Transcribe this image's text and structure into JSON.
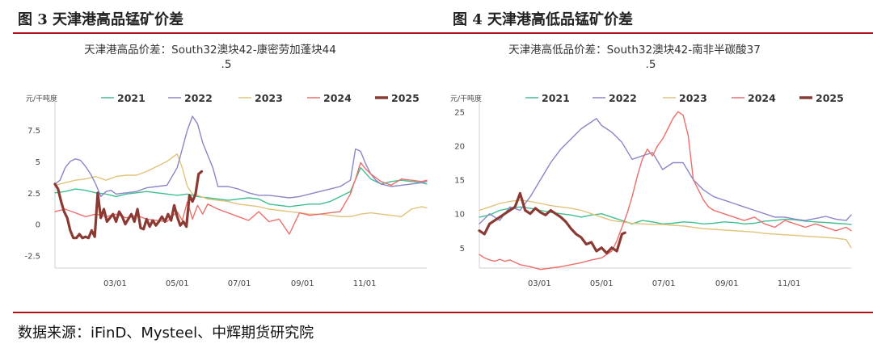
{
  "figure_titles": {
    "left": "图 3 天津港高品锰矿价差",
    "right": "图 4 天津港高低品锰矿价差"
  },
  "footer": "数据来源：iFinD、Mysteel、中辉期货研究院",
  "colors": {
    "rule": "#b0121b",
    "2021": "#3fbf8f",
    "2022": "#8a86c8",
    "2023": "#e2c27a",
    "2024": "#ec6e6a",
    "2025": "#8b3a33"
  },
  "chart_data": [
    {
      "type": "line",
      "title_line1": "天津港高品价差：South32澳块42-康密劳加蓬块44",
      "title_line2": ".5",
      "unit": "元/干吨度",
      "ylim": [
        -3.5,
        9.5
      ],
      "yticks": [
        "7.5",
        "5",
        "2.5",
        "0",
        "-2.5"
      ],
      "ytick_values": [
        7.5,
        5,
        2.5,
        0,
        -2.5
      ],
      "xlim": [
        0,
        365
      ],
      "xticks": [
        "03/01",
        "05/01",
        "07/01",
        "09/01",
        "11/01"
      ],
      "xtick_days": [
        59,
        120,
        181,
        243,
        304
      ],
      "legend": [
        "2021",
        "2022",
        "2023",
        "2024",
        "2025"
      ],
      "series": [
        {
          "name": "2021",
          "x": [
            0,
            10,
            20,
            30,
            40,
            50,
            60,
            70,
            80,
            90,
            100,
            110,
            120,
            130,
            140,
            150,
            160,
            170,
            180,
            190,
            200,
            210,
            220,
            230,
            240,
            250,
            260,
            270,
            280,
            290,
            300,
            310,
            320,
            330,
            340,
            350,
            360,
            365
          ],
          "y": [
            2.5,
            2.6,
            2.8,
            2.7,
            2.5,
            2.4,
            2.2,
            2.4,
            2.5,
            2.6,
            2.5,
            2.4,
            2.3,
            2.4,
            2.2,
            2.1,
            2.0,
            1.9,
            2.0,
            2.1,
            2.0,
            1.6,
            1.5,
            1.4,
            1.5,
            1.6,
            1.6,
            1.8,
            2.2,
            2.6,
            4.5,
            3.6,
            3.2,
            3.4,
            3.5,
            3.4,
            3.3,
            3.2
          ]
        },
        {
          "name": "2022",
          "x": [
            0,
            5,
            10,
            15,
            20,
            25,
            30,
            35,
            40,
            45,
            50,
            55,
            60,
            70,
            80,
            90,
            100,
            110,
            120,
            125,
            130,
            135,
            140,
            145,
            150,
            155,
            160,
            170,
            180,
            190,
            200,
            210,
            220,
            230,
            240,
            250,
            260,
            270,
            280,
            290,
            295,
            300,
            305,
            310,
            315,
            320,
            330,
            340,
            350,
            360,
            365
          ],
          "y": [
            3.2,
            3.5,
            4.5,
            5.0,
            5.2,
            5.1,
            4.6,
            4.0,
            3.2,
            2.2,
            2.6,
            2.7,
            2.4,
            2.5,
            2.6,
            2.9,
            3.0,
            3.1,
            4.5,
            6.0,
            7.5,
            8.6,
            8.0,
            6.5,
            5.5,
            4.5,
            3.0,
            3.0,
            2.8,
            2.5,
            2.3,
            2.3,
            2.2,
            2.1,
            2.2,
            2.4,
            2.6,
            2.8,
            3.0,
            3.5,
            6.0,
            5.8,
            4.8,
            4.0,
            3.5,
            3.2,
            3.0,
            3.1,
            3.2,
            3.3,
            3.4
          ]
        },
        {
          "name": "2023",
          "x": [
            0,
            10,
            20,
            30,
            40,
            50,
            60,
            70,
            80,
            90,
            100,
            110,
            120,
            125,
            130,
            135,
            140,
            150,
            160,
            170,
            180,
            190,
            200,
            210,
            220,
            230,
            240,
            250,
            260,
            270,
            280,
            290,
            300,
            310,
            320,
            330,
            340,
            350,
            360,
            365
          ],
          "y": [
            3.1,
            3.3,
            3.5,
            3.6,
            3.8,
            3.5,
            3.8,
            3.9,
            3.9,
            4.2,
            4.6,
            5.0,
            5.6,
            4.5,
            3.0,
            2.4,
            2.3,
            2.0,
            1.9,
            1.8,
            1.6,
            1.5,
            1.4,
            1.2,
            1.1,
            1.0,
            0.9,
            0.8,
            0.8,
            0.7,
            0.6,
            0.6,
            0.8,
            0.9,
            0.8,
            0.7,
            0.6,
            1.2,
            1.4,
            1.3
          ]
        },
        {
          "name": "2024",
          "x": [
            0,
            10,
            20,
            30,
            40,
            50,
            60,
            70,
            80,
            90,
            100,
            110,
            120,
            125,
            130,
            135,
            140,
            145,
            150,
            160,
            170,
            180,
            190,
            200,
            210,
            220,
            230,
            240,
            250,
            260,
            270,
            280,
            290,
            295,
            300,
            305,
            310,
            320,
            330,
            340,
            350,
            360,
            365
          ],
          "y": [
            1.0,
            1.2,
            0.9,
            0.6,
            0.8,
            0.6,
            0.8,
            0.5,
            0.7,
            0.4,
            0.3,
            0.2,
            1.0,
            0.3,
            1.8,
            0.4,
            1.5,
            0.8,
            1.6,
            1.2,
            0.9,
            0.6,
            0.3,
            1.0,
            0.2,
            0.4,
            -0.8,
            0.9,
            0.7,
            0.8,
            0.9,
            1.0,
            2.4,
            3.6,
            4.9,
            4.4,
            4.0,
            3.4,
            3.1,
            3.6,
            3.5,
            3.4,
            3.5
          ]
        },
        {
          "name": "2025",
          "x": [
            0,
            3,
            6,
            9,
            12,
            15,
            18,
            21,
            24,
            27,
            30,
            33,
            36,
            39,
            42,
            45,
            48,
            51,
            54,
            57,
            60,
            63,
            66,
            69,
            72,
            75,
            78,
            81,
            84,
            87,
            90,
            93,
            96,
            99,
            102,
            105,
            108,
            111,
            114,
            117,
            120,
            123,
            126,
            129,
            132,
            135,
            138,
            141,
            144
          ],
          "y": [
            3.2,
            2.8,
            1.8,
            1.0,
            0.5,
            -0.5,
            -1.1,
            -1.1,
            -0.8,
            -1.1,
            -1.0,
            -1.1,
            -0.5,
            -1.0,
            2.5,
            0.5,
            1.2,
            0.2,
            0.5,
            0.8,
            0.2,
            1.0,
            0.6,
            0.0,
            0.4,
            0.8,
            0.2,
            1.2,
            -0.3,
            -0.4,
            0.4,
            -0.2,
            0.3,
            -0.1,
            0.2,
            0.6,
            0.2,
            0.8,
            0.3,
            1.5,
            0.6,
            -0.1,
            0.2,
            -0.2,
            2.3,
            1.8,
            2.4,
            4.0,
            4.2
          ]
        }
      ]
    },
    {
      "type": "line",
      "title_line1": "天津港高低品价差：South32澳块42-南非半碳酸37",
      "title_line2": ".5",
      "unit": "元/干吨度",
      "ylim": [
        2,
        26
      ],
      "yticks": [
        "25",
        "20",
        "15",
        "10",
        "5"
      ],
      "ytick_values": [
        25,
        20,
        15,
        10,
        5
      ],
      "xlim": [
        0,
        365
      ],
      "xticks": [
        "03/01",
        "05/01",
        "07/01",
        "09/01",
        "11/01"
      ],
      "xtick_days": [
        59,
        120,
        181,
        243,
        304
      ],
      "legend": [
        "2021",
        "2022",
        "2023",
        "2024",
        "2025"
      ],
      "series": [
        {
          "name": "2021",
          "x": [
            0,
            10,
            20,
            30,
            40,
            50,
            60,
            70,
            80,
            90,
            100,
            110,
            120,
            130,
            140,
            150,
            160,
            170,
            180,
            190,
            200,
            210,
            220,
            230,
            240,
            250,
            260,
            270,
            280,
            290,
            300,
            310,
            320,
            330,
            340,
            350,
            360,
            365
          ],
          "y": [
            9.5,
            9.8,
            10.5,
            10.8,
            11.0,
            10.8,
            10.5,
            10.2,
            10.0,
            9.8,
            9.5,
            9.8,
            10.0,
            9.5,
            9.0,
            8.5,
            9.0,
            8.8,
            8.5,
            8.6,
            8.8,
            8.7,
            8.5,
            8.6,
            8.8,
            8.7,
            8.5,
            8.6,
            8.9,
            9.0,
            9.2,
            9.1,
            8.9,
            8.8,
            8.7,
            8.6,
            8.5,
            8.4
          ]
        },
        {
          "name": "2022",
          "x": [
            0,
            10,
            20,
            30,
            40,
            50,
            60,
            70,
            80,
            90,
            100,
            110,
            115,
            120,
            125,
            130,
            140,
            150,
            160,
            170,
            180,
            190,
            200,
            210,
            220,
            230,
            240,
            250,
            260,
            270,
            280,
            290,
            300,
            310,
            320,
            330,
            340,
            350,
            360,
            365
          ],
          "y": [
            8.5,
            10.0,
            9.0,
            11.0,
            10.5,
            12.5,
            15.0,
            17.5,
            19.5,
            21.0,
            22.5,
            23.5,
            24.0,
            23.0,
            22.5,
            22.0,
            20.5,
            18.0,
            18.5,
            19.0,
            16.5,
            17.5,
            17.5,
            15.0,
            13.5,
            12.5,
            12.0,
            11.5,
            11.0,
            10.5,
            10.0,
            9.5,
            9.5,
            9.2,
            9.0,
            9.3,
            9.6,
            9.2,
            9.0,
            9.8
          ]
        },
        {
          "name": "2023",
          "x": [
            0,
            10,
            20,
            30,
            40,
            50,
            60,
            70,
            80,
            90,
            100,
            110,
            120,
            130,
            140,
            150,
            160,
            170,
            180,
            190,
            200,
            210,
            220,
            230,
            240,
            250,
            260,
            270,
            280,
            290,
            300,
            310,
            320,
            330,
            340,
            350,
            360,
            365
          ],
          "y": [
            10.5,
            11.0,
            11.5,
            11.8,
            12.0,
            11.8,
            11.5,
            11.2,
            11.0,
            10.8,
            10.5,
            10.0,
            9.5,
            9.0,
            8.8,
            8.6,
            8.5,
            8.4,
            8.4,
            8.3,
            8.2,
            8.0,
            7.8,
            7.7,
            7.6,
            7.5,
            7.4,
            7.3,
            7.1,
            7.0,
            6.9,
            6.8,
            6.7,
            6.6,
            6.5,
            6.4,
            6.2,
            5.0
          ]
        },
        {
          "name": "2024",
          "x": [
            0,
            5,
            10,
            15,
            20,
            25,
            30,
            40,
            50,
            60,
            70,
            80,
            90,
            100,
            110,
            120,
            130,
            135,
            140,
            145,
            150,
            155,
            160,
            165,
            170,
            175,
            180,
            185,
            190,
            195,
            200,
            205,
            210,
            215,
            220,
            225,
            230,
            240,
            250,
            260,
            270,
            280,
            290,
            300,
            310,
            320,
            330,
            340,
            350,
            360,
            365
          ],
          "y": [
            4.0,
            3.5,
            3.2,
            3.0,
            3.3,
            3.0,
            3.2,
            2.5,
            2.2,
            1.8,
            2.0,
            2.2,
            2.5,
            2.8,
            3.2,
            3.5,
            4.5,
            6.0,
            8.0,
            10.0,
            12.5,
            15.5,
            18.0,
            19.5,
            18.5,
            20.0,
            21.0,
            22.5,
            24.0,
            25.0,
            24.5,
            21.5,
            15.0,
            13.5,
            12.0,
            11.0,
            10.5,
            10.0,
            9.5,
            9.0,
            9.5,
            8.5,
            8.0,
            9.0,
            8.5,
            8.0,
            8.5,
            8.0,
            7.5,
            8.0,
            7.5
          ]
        },
        {
          "name": "2025",
          "x": [
            0,
            5,
            10,
            15,
            20,
            25,
            30,
            35,
            40,
            45,
            50,
            55,
            60,
            65,
            70,
            75,
            80,
            85,
            90,
            95,
            100,
            105,
            110,
            115,
            120,
            125,
            130,
            135,
            140,
            143
          ],
          "y": [
            7.5,
            7.0,
            8.5,
            9.0,
            9.5,
            10.0,
            10.5,
            11.0,
            13.0,
            10.5,
            10.0,
            10.8,
            10.2,
            9.8,
            10.5,
            10.0,
            9.5,
            8.8,
            7.8,
            7.0,
            6.5,
            5.5,
            5.8,
            4.5,
            5.0,
            4.2,
            5.0,
            4.5,
            7.0,
            7.2
          ]
        }
      ]
    }
  ]
}
